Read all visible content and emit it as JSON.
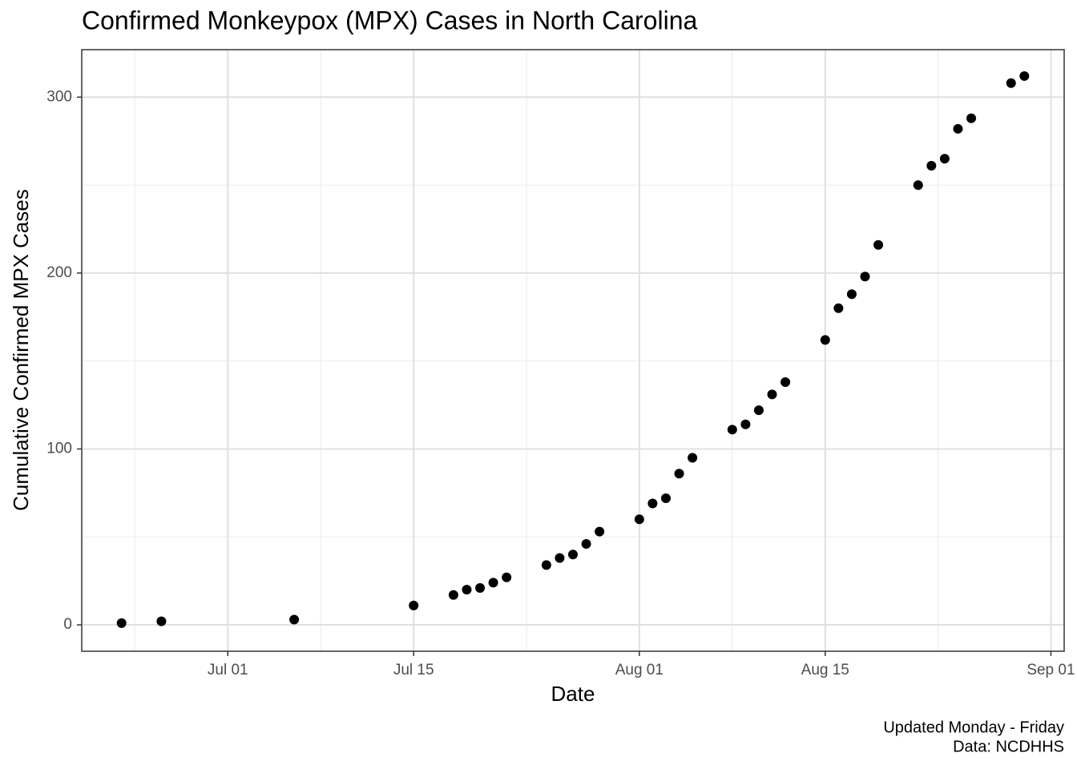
{
  "chart_data": {
    "type": "scatter",
    "title": "Confirmed Monkeypox (MPX) Cases in North Carolina",
    "x_label": "Date",
    "y_label": "Cumulative Confirmed MPX Cases",
    "caption": [
      "Updated Monday - Friday",
      "Data: NCDHHS"
    ],
    "color": "#000000",
    "grid": true,
    "x": [
      "Jun 23",
      "Jun 26",
      "Jul 06",
      "Jul 15",
      "Jul 18",
      "Jul 19",
      "Jul 20",
      "Jul 21",
      "Jul 22",
      "Jul 25",
      "Jul 26",
      "Jul 27",
      "Jul 28",
      "Jul 29",
      "Aug 01",
      "Aug 02",
      "Aug 03",
      "Aug 04",
      "Aug 05",
      "Aug 08",
      "Aug 09",
      "Aug 10",
      "Aug 11",
      "Aug 12",
      "Aug 15",
      "Aug 16",
      "Aug 17",
      "Aug 18",
      "Aug 19",
      "Aug 22",
      "Aug 23",
      "Aug 24",
      "Aug 25",
      "Aug 26",
      "Aug 29",
      "Aug 30"
    ],
    "values": [
      1,
      2,
      3,
      11,
      17,
      20,
      21,
      24,
      27,
      34,
      38,
      40,
      46,
      53,
      60,
      69,
      72,
      86,
      95,
      111,
      114,
      122,
      131,
      138,
      162,
      180,
      188,
      198,
      216,
      250,
      261,
      265,
      282,
      288,
      308,
      312
    ],
    "xlim": [
      "Jun 20",
      "Sep 02"
    ],
    "xticks": [
      "Jul 01",
      "Jul 15",
      "Aug 01",
      "Aug 15",
      "Sep 01"
    ],
    "ylim": [
      -15,
      327
    ],
    "yticks": [
      0,
      100,
      200,
      300
    ]
  }
}
